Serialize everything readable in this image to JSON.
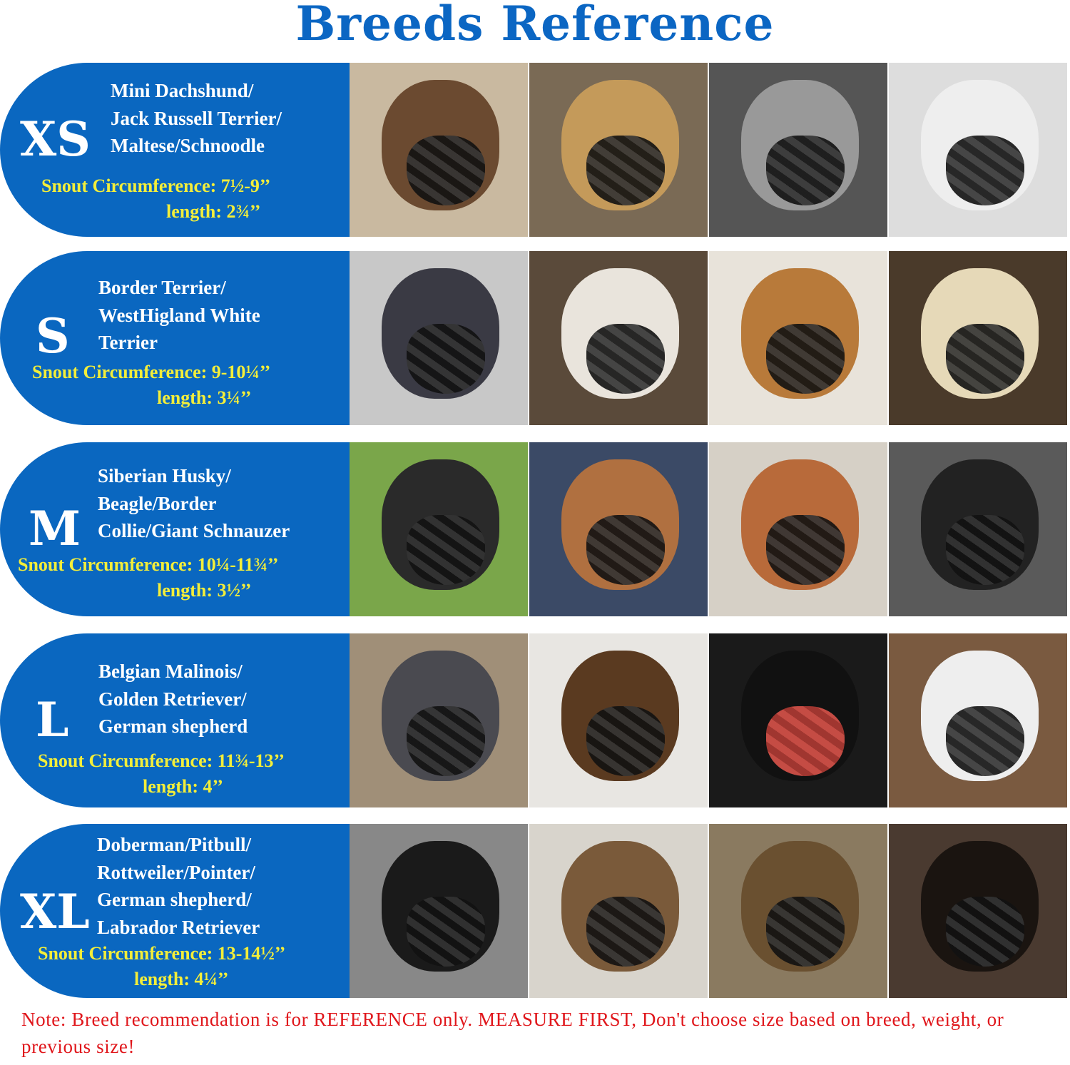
{
  "title": "Breeds Reference",
  "colors": {
    "title": "#0b66c3",
    "panel": "#0a67c0",
    "measurement": "#f3ee3a",
    "note": "#e0161b"
  },
  "sizes": [
    {
      "size": "XS",
      "breeds": [
        "Mini Dachshund/",
        "Jack Russell Terrier/",
        "Maltese/Schnoodle"
      ],
      "snout": "Snout Circumference: 7½-9’’",
      "length": "length: 2¾’’"
    },
    {
      "size": "S",
      "breeds": [
        "Border Terrier/",
        "WestHigland White",
        "Terrier"
      ],
      "snout": "Snout Circumference: 9-10¼’’",
      "length": "length: 3¼’’"
    },
    {
      "size": "M",
      "breeds": [
        "Siberian Husky/",
        "Beagle/Border",
        "Collie/Giant Schnauzer"
      ],
      "snout": "Snout Circumference: 10¼-11¾’’",
      "length": "length: 3½’’"
    },
    {
      "size": "L",
      "breeds": [
        "Belgian Malinois/",
        "Golden Retriever/",
        "German shepherd"
      ],
      "snout": "Snout Circumference: 11¾-13’’",
      "length": "length: 4’’"
    },
    {
      "size": "XL",
      "breeds": [
        "Doberman/Pitbull/",
        "Rottweiler/Pointer/",
        "German shepherd/",
        "Labrador Retriever"
      ],
      "snout": "Snout Circumference: 13-14½’’",
      "length": "length: 4¼’’"
    }
  ],
  "note": "Note: Breed recommendation is for REFERENCE only. MEASURE FIRST, Don't choose size based on breed, weight, or previous size!"
}
